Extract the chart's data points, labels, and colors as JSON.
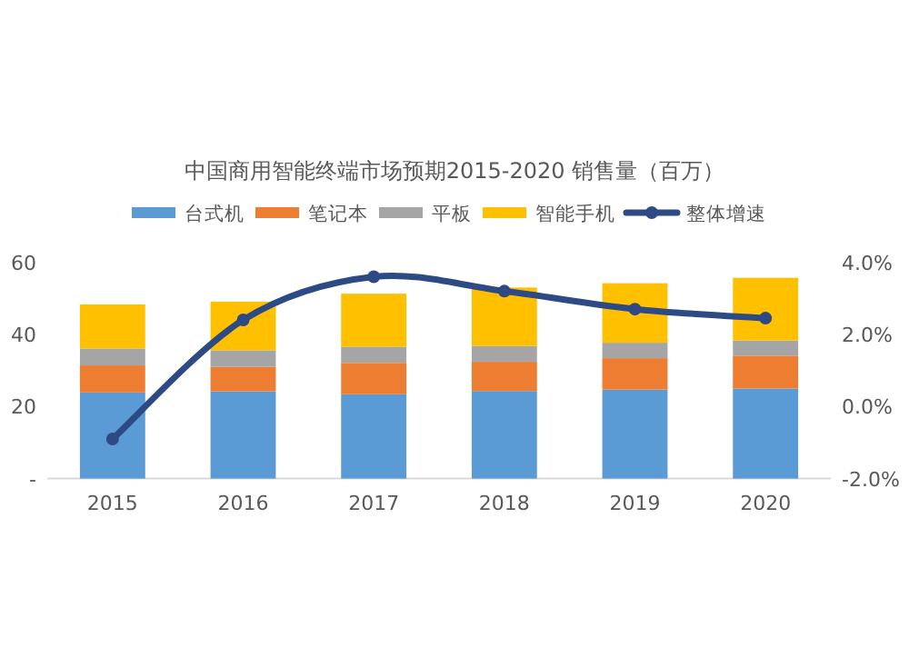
{
  "chart_data": {
    "type": "bar",
    "title": "中国商用智能终端市场预期2015-2020 销售量（百万）",
    "categories": [
      "2015",
      "2016",
      "2017",
      "2018",
      "2019",
      "2020"
    ],
    "stacked": true,
    "series": [
      {
        "name": "台式机",
        "color": "#5b9bd5",
        "values": [
          23.9,
          24.2,
          23.4,
          24.3,
          24.7,
          25.0
        ]
      },
      {
        "name": "笔记本",
        "color": "#ed7d31",
        "values": [
          7.5,
          6.8,
          8.7,
          8.1,
          8.7,
          9.1
        ]
      },
      {
        "name": "平板",
        "color": "#a5a5a5",
        "values": [
          4.7,
          4.6,
          4.5,
          4.4,
          4.3,
          4.2
        ]
      },
      {
        "name": "智能手机",
        "color": "#ffc000",
        "values": [
          12.2,
          13.5,
          14.7,
          16.2,
          16.5,
          17.4
        ]
      },
      {
        "name": "整体增速",
        "color": "#2e4a85",
        "type": "line",
        "axis": "y2",
        "marker": "circle",
        "values": [
          -0.9,
          2.4,
          3.6,
          3.2,
          2.7,
          2.45
        ]
      }
    ],
    "ylim": [
      0,
      60
    ],
    "yticks": [
      {
        "value": 0,
        "label": "-"
      },
      20,
      40,
      60
    ],
    "y2lim": [
      -2,
      4
    ],
    "y2ticks": [
      {
        "value": -2,
        "label": "-2.0%"
      },
      {
        "value": 0,
        "label": "0.0%"
      },
      {
        "value": 2,
        "label": "2.0%"
      },
      {
        "value": 4,
        "label": "4.0%"
      }
    ],
    "legend": "top"
  }
}
